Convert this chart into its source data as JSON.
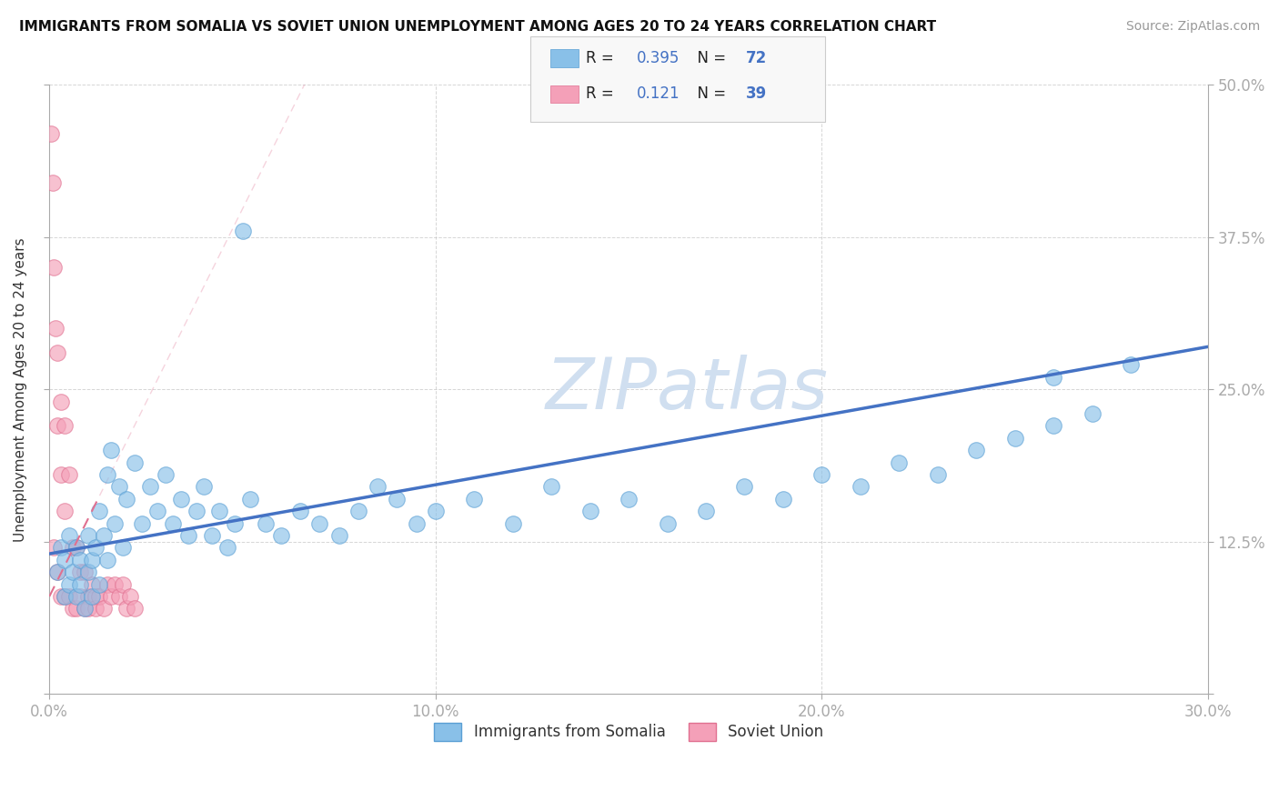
{
  "title": "IMMIGRANTS FROM SOMALIA VS SOVIET UNION UNEMPLOYMENT AMONG AGES 20 TO 24 YEARS CORRELATION CHART",
  "source": "Source: ZipAtlas.com",
  "ylabel": "Unemployment Among Ages 20 to 24 years",
  "xlim": [
    0.0,
    0.3
  ],
  "ylim": [
    0.0,
    0.5
  ],
  "xtick_vals": [
    0.0,
    0.1,
    0.2,
    0.3
  ],
  "xticklabels": [
    "0.0%",
    "10.0%",
    "20.0%",
    "30.0%"
  ],
  "ytick_vals": [
    0.0,
    0.125,
    0.25,
    0.375,
    0.5
  ],
  "right_yticklabels": [
    "",
    "12.5%",
    "25.0%",
    "37.5%",
    "50.0%"
  ],
  "somalia_color": "#89c0e8",
  "somalia_edge": "#5a9fd4",
  "soviet_color": "#f4a0b8",
  "soviet_edge": "#e07090",
  "somalia_R": 0.395,
  "somalia_N": 72,
  "soviet_R": 0.121,
  "soviet_N": 39,
  "blue_color": "#4472c4",
  "pink_color": "#e07090",
  "watermark": "ZIPatlas",
  "watermark_color": "#d0dff0",
  "grid_color": "#bbbbbb",
  "background_color": "#ffffff",
  "somalia_x": [
    0.002,
    0.003,
    0.004,
    0.004,
    0.005,
    0.005,
    0.006,
    0.007,
    0.007,
    0.008,
    0.008,
    0.009,
    0.01,
    0.01,
    0.011,
    0.011,
    0.012,
    0.013,
    0.013,
    0.014,
    0.015,
    0.015,
    0.016,
    0.017,
    0.018,
    0.019,
    0.02,
    0.022,
    0.024,
    0.026,
    0.028,
    0.03,
    0.032,
    0.034,
    0.036,
    0.038,
    0.04,
    0.042,
    0.044,
    0.046,
    0.048,
    0.052,
    0.056,
    0.06,
    0.065,
    0.07,
    0.075,
    0.08,
    0.085,
    0.09,
    0.095,
    0.1,
    0.11,
    0.12,
    0.13,
    0.14,
    0.15,
    0.16,
    0.17,
    0.18,
    0.19,
    0.2,
    0.21,
    0.22,
    0.23,
    0.24,
    0.25,
    0.26,
    0.27,
    0.28,
    0.26,
    0.05
  ],
  "somalia_y": [
    0.1,
    0.12,
    0.08,
    0.11,
    0.09,
    0.13,
    0.1,
    0.08,
    0.12,
    0.09,
    0.11,
    0.07,
    0.1,
    0.13,
    0.11,
    0.08,
    0.12,
    0.15,
    0.09,
    0.13,
    0.18,
    0.11,
    0.2,
    0.14,
    0.17,
    0.12,
    0.16,
    0.19,
    0.14,
    0.17,
    0.15,
    0.18,
    0.14,
    0.16,
    0.13,
    0.15,
    0.17,
    0.13,
    0.15,
    0.12,
    0.14,
    0.16,
    0.14,
    0.13,
    0.15,
    0.14,
    0.13,
    0.15,
    0.17,
    0.16,
    0.14,
    0.15,
    0.16,
    0.14,
    0.17,
    0.15,
    0.16,
    0.14,
    0.15,
    0.17,
    0.16,
    0.18,
    0.17,
    0.19,
    0.18,
    0.2,
    0.21,
    0.22,
    0.23,
    0.27,
    0.26,
    0.38
  ],
  "soviet_x": [
    0.0005,
    0.0008,
    0.001,
    0.001,
    0.0015,
    0.002,
    0.002,
    0.002,
    0.003,
    0.003,
    0.003,
    0.004,
    0.004,
    0.004,
    0.005,
    0.005,
    0.006,
    0.006,
    0.007,
    0.007,
    0.008,
    0.008,
    0.009,
    0.009,
    0.01,
    0.01,
    0.011,
    0.012,
    0.012,
    0.013,
    0.014,
    0.015,
    0.016,
    0.017,
    0.018,
    0.019,
    0.02,
    0.021,
    0.022
  ],
  "soviet_y": [
    0.46,
    0.42,
    0.35,
    0.12,
    0.3,
    0.28,
    0.22,
    0.1,
    0.24,
    0.18,
    0.08,
    0.22,
    0.15,
    0.08,
    0.18,
    0.08,
    0.12,
    0.07,
    0.12,
    0.07,
    0.1,
    0.08,
    0.1,
    0.07,
    0.08,
    0.07,
    0.09,
    0.08,
    0.07,
    0.08,
    0.07,
    0.09,
    0.08,
    0.09,
    0.08,
    0.09,
    0.07,
    0.08,
    0.07
  ],
  "trend_somalia_start_y": 0.115,
  "trend_somalia_end_y": 0.285,
  "trend_soviet_start_y": 0.08,
  "trend_soviet_end_y": 0.22
}
